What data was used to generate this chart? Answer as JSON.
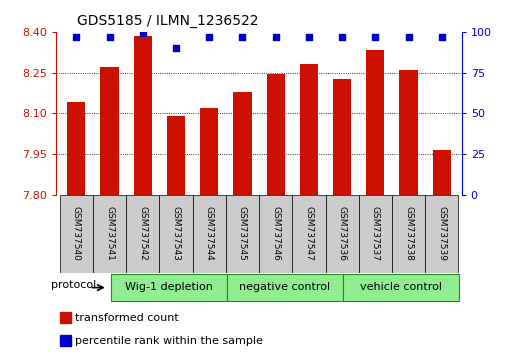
{
  "title": "GDS5185 / ILMN_1236522",
  "samples": [
    "GSM737540",
    "GSM737541",
    "GSM737542",
    "GSM737543",
    "GSM737544",
    "GSM737545",
    "GSM737546",
    "GSM737547",
    "GSM737536",
    "GSM737537",
    "GSM737538",
    "GSM737539"
  ],
  "bar_values": [
    8.14,
    8.27,
    8.385,
    8.09,
    8.12,
    8.18,
    8.245,
    8.28,
    8.225,
    8.335,
    8.26,
    7.965
  ],
  "percentile_values": [
    97,
    97,
    99,
    90,
    97,
    97,
    97,
    97,
    97,
    97,
    97,
    97
  ],
  "bar_color": "#cc1100",
  "percentile_color": "#0000cc",
  "ylim_left": [
    7.8,
    8.4
  ],
  "ylim_right": [
    0,
    100
  ],
  "yticks_left": [
    7.8,
    7.95,
    8.1,
    8.25,
    8.4
  ],
  "yticks_right": [
    0,
    25,
    50,
    75,
    100
  ],
  "groups": [
    {
      "label": "Wig-1 depletion",
      "start": 0,
      "end": 4
    },
    {
      "label": "negative control",
      "start": 4,
      "end": 8
    },
    {
      "label": "vehicle control",
      "start": 8,
      "end": 12
    }
  ],
  "group_color": "#90ee90",
  "group_edge_color": "#228B22",
  "protocol_label": "protocol",
  "legend_items": [
    {
      "color": "#cc1100",
      "label": "transformed count"
    },
    {
      "color": "#0000cc",
      "label": "percentile rank within the sample"
    }
  ],
  "bar_width": 0.55,
  "background_color": "#ffffff",
  "plot_bg_color": "#ffffff",
  "sample_box_color": "#cccccc"
}
